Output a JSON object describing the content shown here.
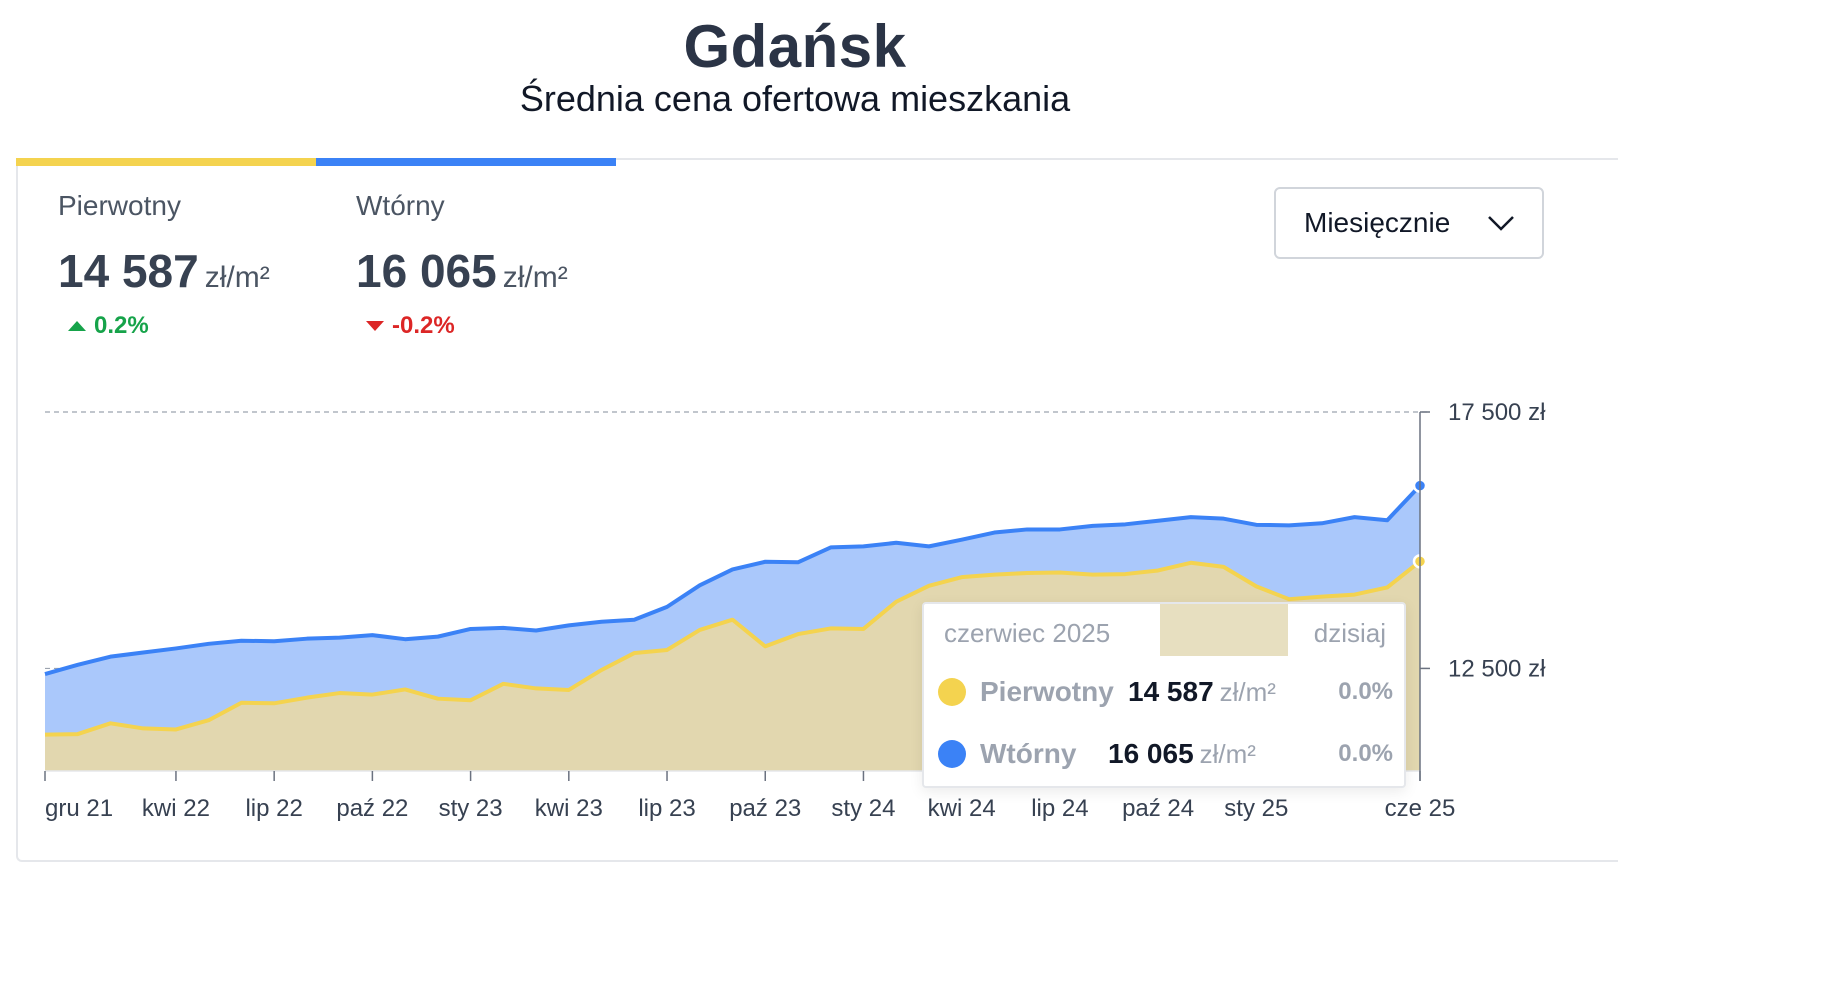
{
  "header": {
    "title": "Gdańsk",
    "subtitle": "Średnia cena ofertowa mieszkania"
  },
  "stats": [
    {
      "label": "Pierwotny",
      "value": "14 587",
      "unit": "zł/m²",
      "change": "0.2%",
      "direction": "up",
      "color": "#f4d34f"
    },
    {
      "label": "Wtórny",
      "value": "16 065",
      "unit": "zł/m²",
      "change": "-0.2%",
      "direction": "down",
      "color": "#3b82f6"
    }
  ],
  "period_select": {
    "selected": "Miesięcznie"
  },
  "chart_data": {
    "type": "area",
    "title": "Średnia cena ofertowa mieszkania",
    "ylim": [
      10500,
      17500
    ],
    "y_ticks": [
      {
        "value": 17500,
        "label": "17 500 zł"
      },
      {
        "value": 12500,
        "label": "12 500 zł"
      }
    ],
    "x_tick_labels": [
      {
        "index": 0,
        "label": "gru 21"
      },
      {
        "index": 4,
        "label": "kwi 22"
      },
      {
        "index": 7,
        "label": "lip 22"
      },
      {
        "index": 10,
        "label": "paź 22"
      },
      {
        "index": 13,
        "label": "sty 23"
      },
      {
        "index": 16,
        "label": "kwi 23"
      },
      {
        "index": 19,
        "label": "lip 23"
      },
      {
        "index": 22,
        "label": "paź 23"
      },
      {
        "index": 25,
        "label": "sty 24"
      },
      {
        "index": 28,
        "label": "kwi 24"
      },
      {
        "index": 31,
        "label": "lip 24"
      },
      {
        "index": 34,
        "label": "paź 24"
      },
      {
        "index": 37,
        "label": "sty 25"
      },
      {
        "index": 42,
        "label": "cze 25"
      }
    ],
    "x_range": [
      0,
      42
    ],
    "series": [
      {
        "name": "Wtórny",
        "color": "#3b82f6",
        "fill": "#aac8fb",
        "values": [
          12390,
          12570,
          12730,
          12810,
          12890,
          12980,
          13040,
          13030,
          13080,
          13100,
          13150,
          13070,
          13120,
          13270,
          13290,
          13240,
          13340,
          13410,
          13450,
          13700,
          14120,
          14430,
          14580,
          14570,
          14860,
          14880,
          14950,
          14880,
          15010,
          15150,
          15210,
          15210,
          15280,
          15310,
          15380,
          15450,
          15420,
          15300,
          15290,
          15330,
          15450,
          15390,
          16065
        ]
      },
      {
        "name": "Pierwotny",
        "color": "#f4d34f",
        "fill": "#e2d7af",
        "values": [
          11210,
          11220,
          11430,
          11330,
          11310,
          11490,
          11830,
          11820,
          11930,
          12020,
          11990,
          12090,
          11910,
          11880,
          12200,
          12110,
          12080,
          12470,
          12800,
          12860,
          13250,
          13450,
          12930,
          13170,
          13280,
          13270,
          13800,
          14110,
          14280,
          14330,
          14360,
          14370,
          14330,
          14340,
          14410,
          14560,
          14480,
          14100,
          13850,
          13900,
          13940,
          14080,
          14587
        ]
      }
    ]
  },
  "tooltip": {
    "month": "czerwiec 2025",
    "today": "dzisiaj",
    "rows": [
      {
        "name": "Pierwotny",
        "value": "14 587",
        "unit": "zł/m²",
        "pct": "0.0%",
        "color": "#f4d34f"
      },
      {
        "name": "Wtórny",
        "value": "16 065",
        "unit": "zł/m²",
        "pct": "0.0%",
        "color": "#3b82f6"
      }
    ]
  }
}
